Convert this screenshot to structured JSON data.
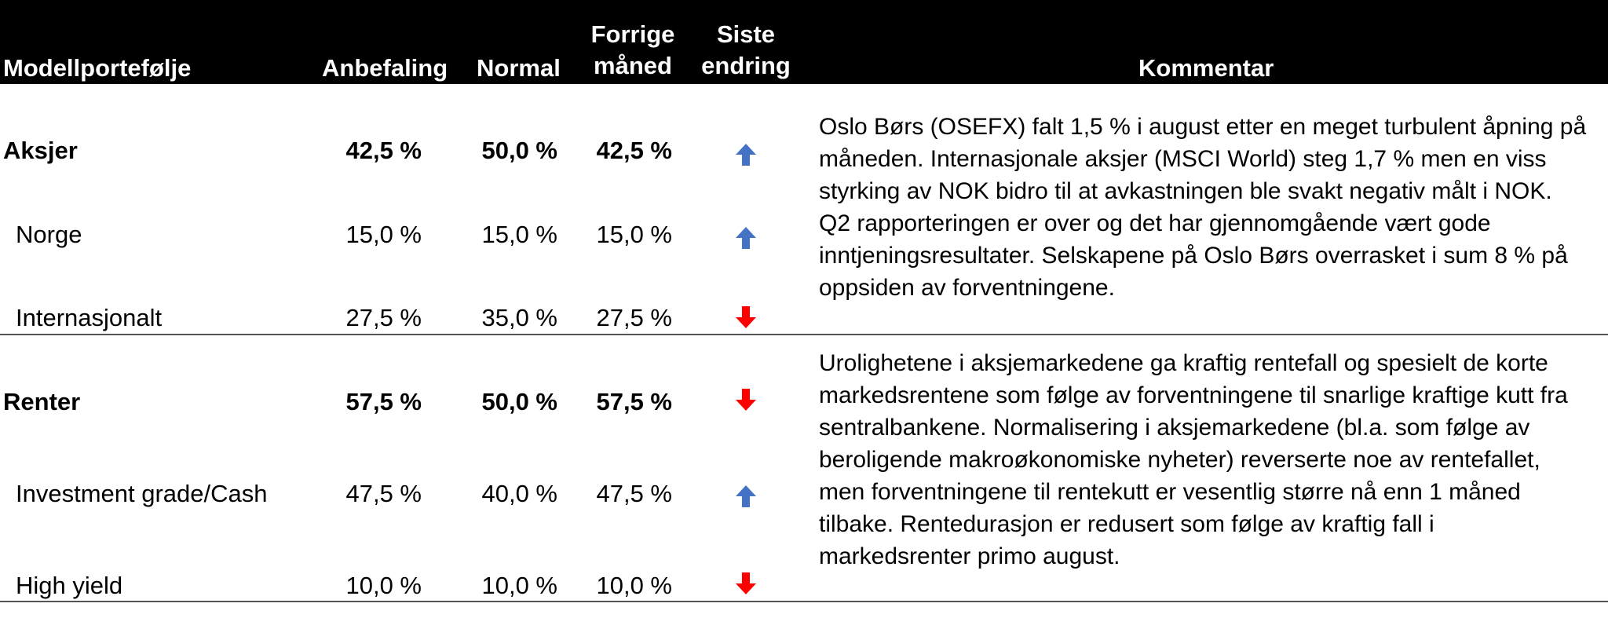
{
  "header": {
    "col_portfolio": "Modellportefølje",
    "col_recommendation": "Anbefaling",
    "col_normal": "Normal",
    "col_previous_line1": "Forrige",
    "col_previous_line2": "måned",
    "col_change_line1": "Siste",
    "col_change_line2": "endring",
    "col_comment": "Kommentar"
  },
  "sections": [
    {
      "main": {
        "label": "Aksjer",
        "recommendation": "42,5 %",
        "normal": "50,0 %",
        "previous": "42,5 %",
        "change": "up"
      },
      "sub": [
        {
          "label": "Norge",
          "recommendation": "15,0 %",
          "normal": "15,0 %",
          "previous": "15,0 %",
          "change": "up"
        },
        {
          "label": "Internasjonalt",
          "recommendation": "27,5 %",
          "normal": "35,0 %",
          "previous": "27,5 %",
          "change": "down"
        }
      ],
      "comment": "Oslo Børs (OSEFX) falt 1,5 % i august etter en meget turbulent åpning på måneden. Internasjonale aksjer (MSCI World) steg 1,7 % men en viss styrking av NOK bidro til at avkastningen ble svakt negativ målt i NOK. Q2 rapporteringen er over og det har gjennomgående vært gode inntjeningsresultater. Selskapene på Oslo Børs overrasket i sum 8 % på oppsiden av forventningene."
    },
    {
      "main": {
        "label": "Renter",
        "recommendation": "57,5 %",
        "normal": "50,0 %",
        "previous": "57,5 %",
        "change": "down"
      },
      "sub": [
        {
          "label": "Investment grade/Cash",
          "recommendation": "47,5 %",
          "normal": "40,0 %",
          "previous": "47,5 %",
          "change": "up"
        },
        {
          "label": "High yield",
          "recommendation": "10,0 %",
          "normal": "10,0 %",
          "previous": "10,0 %",
          "change": "down"
        }
      ],
      "comment": "Urolighetene i aksjemarkedene ga kraftig rentefall og spesielt de korte markedsrentene som følge av forventningene til snarlige kraftige kutt fra sentralbankene. Normalisering i aksjemarkedene (bl.a. som følge av beroligende makroøkonomiske nyheter) reverserte noe av rentefallet, men forventningene til rentekutt er vesentlig større nå enn 1 måned tilbake. Rentedurasjon er redusert som følge av kraftig fall i markedsrenter primo august."
    }
  ],
  "colors": {
    "header_bg": "#000000",
    "header_text": "#ffffff",
    "arrow_up": "#4472c4",
    "arrow_down": "#ff0000"
  },
  "icons": {
    "up": "arrow-up-icon",
    "down": "arrow-down-icon"
  }
}
